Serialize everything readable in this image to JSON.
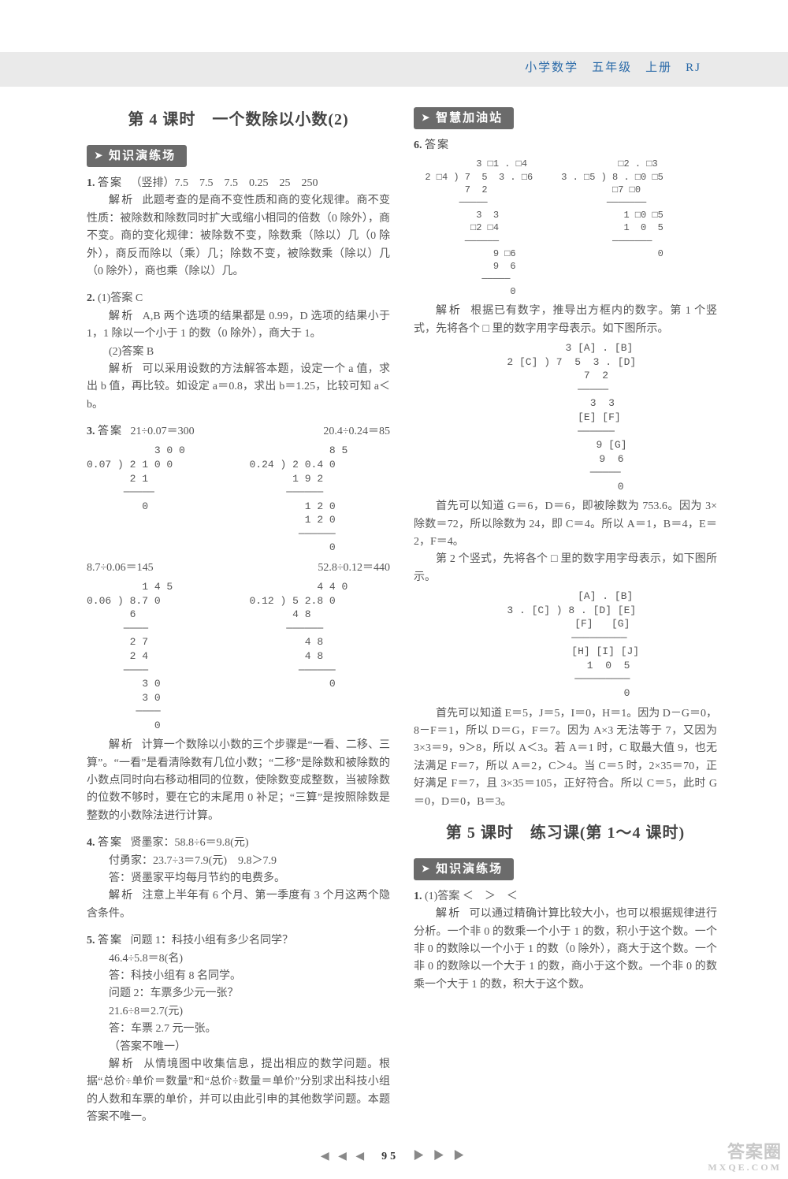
{
  "header": "小学数学　五年级　上册　RJ",
  "left": {
    "lesson_title": "第 4 课时　一个数除以小数(2)",
    "section1": "知识演练场",
    "q1": {
      "num": "1.",
      "ans_label": "答案",
      "ans": "（竖排）7.5　7.5　7.5　0.25　25　250",
      "ex_label": "解析",
      "ex": "此题考查的是商不变性质和商的变化规律。商不变性质：被除数和除数同时扩大或缩小相同的倍数（0 除外），商不变。商的变化规律：被除数不变，除数乘（除以）几（0 除外），商反而除以（乘）几；除数不变，被除数乘（除以）几（0 除外），商也乘（除以）几。"
    },
    "q2": {
      "num": "2.",
      "p1_label": "(1)答案",
      "p1_ans": "C",
      "p1_ex_label": "解析",
      "p1_ex": "A,B 两个选项的结果都是 0.99，D 选项的结果小于 1，1 除以一个小于 1 的数（0 除外），商大于 1。",
      "p2_label": "(2)答案",
      "p2_ans": "B",
      "p2_ex_label": "解析",
      "p2_ex": "可以采用设数的方法解答本题，设定一个 a 值，求出 b 值，再比较。如设定 a＝0.8，求出 b＝1.25，比较可知 a＜b。"
    },
    "q3": {
      "num": "3.",
      "ans_label": "答案",
      "eq1": "21÷0.07＝300",
      "eq2": "20.4÷0.24＝85",
      "div1": "           3 0 0\n0.07 ) 2 1 0 0\n       2 1\n      ─────\n         0",
      "div2": "             8 5\n0.24 ) 2 0.4 0\n       1 9 2\n      ──────\n         1 2 0\n         1 2 0\n        ──────\n             0",
      "eq3": "8.7÷0.06＝145",
      "eq4": "52.8÷0.12＝440",
      "div3": "         1 4 5\n0.06 ) 8.7 0\n       6\n      ────\n       2 7\n       2 4\n      ────\n         3 0\n         3 0\n        ────\n           0",
      "div4": "           4 4 0\n0.12 ) 5 2.8 0\n       4 8\n      ──────\n         4 8\n         4 8\n        ──────\n             0",
      "ex_label": "解析",
      "ex": "计算一个数除以小数的三个步骤是“一看、二移、三算”。“一看”是看清除数有几位小数；“二移”是除数和被除数的小数点同时向右移动相同的位数，使除数变成整数，当被除数的位数不够时，要在它的末尾用 0 补足；“三算”是按照除数是整数的小数除法进行计算。"
    },
    "q4": {
      "num": "4.",
      "ans_label": "答案",
      "l1": "贤墨家：58.8÷6＝9.8(元)",
      "l2": "付勇家：23.7÷3＝7.9(元)　9.8＞7.9",
      "l3": "答：贤墨家平均每月节约的电费多。",
      "ex_label": "解析",
      "ex": "注意上半年有 6 个月、第一季度有 3 个月这两个隐含条件。"
    },
    "q5": {
      "num": "5.",
      "ans_label": "答案",
      "l1": "问题 1：科技小组有多少名同学？",
      "l2": "46.4÷5.8＝8(名)",
      "l3": "答：科技小组有 8 名同学。",
      "l4": "问题 2：车票多少元一张？",
      "l5": "21.6÷8＝2.7(元)",
      "l6": "答：车票 2.7 元一张。",
      "l7": "（答案不唯一）",
      "ex_label": "解析",
      "ex": "从情境图中收集信息，提出相应的数学问题。根据“总价÷单价＝数量”和“总价÷数量＝单价”分别求出科技小组的人数和车票的单价，并可以由此引申的其他数学问题。本题答案不唯一。"
    }
  },
  "right": {
    "section1": "智慧加油站",
    "q6": {
      "num": "6.",
      "ans_label": "答案",
      "div1": "           3 □1 . □4                □2 . □3\n  2 □4 ) 7  5  3 . □6     3 . □5 ) 8 . □0 □5\n         7  2                      □7 □0\n        ─────                     ───────\n           3  3                      1 □0 □5\n          □2 □4                      1  0  5\n         ──────                    ───────\n              9 □6                         0\n              9  6\n            ─────\n                 0",
      "ex_label": "解析",
      "ex1": "根据已有数字，推导出方框内的数字。第 1 个竖式，先将各个 □ 里的数字用字母表示。如下图所示。",
      "div2": "           3 [A] . [B]\n  2 [C] ) 7  5  3 . [D]\n          7  2\n         ─────\n            3  3\n           [E] [F]\n          ──────\n               9 [G]\n               9  6\n             ─────\n                  0",
      "ex2": "首先可以知道 G＝6，D＝6，即被除数为 753.6。因为 3×除数＝72，所以除数为 24，即 C＝4。所以 A＝1，B＝4，E＝2，F＝4。",
      "ex3": "第 2 个竖式，先将各个 □ 里的数字用字母表示，如下图所示。",
      "div3": "             [A] . [B]\n  3 . [C] ) 8 . [D] [E]\n            [F]   [G]\n           ─────────\n             [H] [I] [J]\n              1  0  5\n            ─────────\n                    0",
      "ex4": "首先可以知道 E＝5，J＝5，I＝0，H＝1。因为 D－G＝0，8－F＝1，所以 D＝G，F＝7。因为 A×3 无法等于 7，又因为 3×3＝9，9＞8，所以 A＜3。若 A＝1 时，C 取最大值 9，也无法满足 F＝7，所以 A＝2，C＞4。当 C＝5 时，2×35＝70，正好满足 F＝7，且 3×35＝105，正好符合。所以 C＝5，此时 G＝0，D＝0，B＝3。"
    },
    "lesson_title": "第 5 课时　练习课(第 1～4 课时)",
    "section2": "知识演练场",
    "q1": {
      "num": "1.",
      "p1_label": "(1)答案",
      "p1_ans": "＜　＞　＜",
      "ex_label": "解析",
      "ex": "可以通过精确计算比较大小，也可以根据规律进行分析。一个非 0 的数乘一个小于 1 的数，积小于这个数。一个非 0 的数除以一个小于 1 的数（0 除外），商大于这个数。一个非 0 的数除以一个大于 1 的数，商小于这个数。一个非 0 的数乘一个大于 1 的数，积大于这个数。"
    }
  },
  "page_num": "95",
  "watermark_big": "答案圈",
  "watermark_small": "MXQE.COM"
}
